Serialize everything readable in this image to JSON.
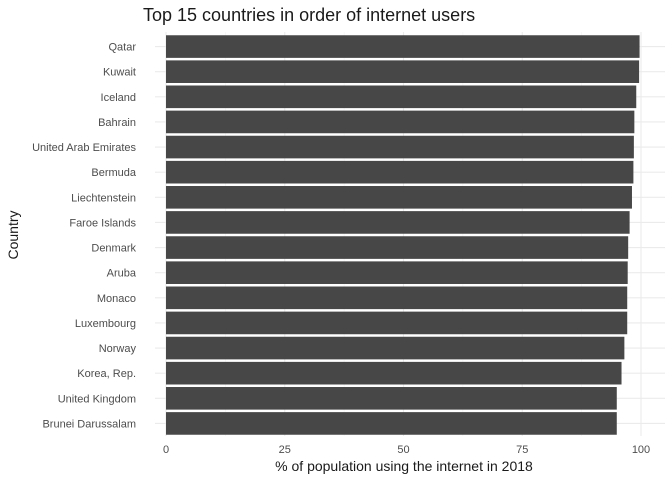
{
  "chart_data": {
    "type": "bar",
    "orientation": "horizontal",
    "title": "Top 15 countries in order of internet users",
    "xlabel": "% of population using the internet in 2018",
    "ylabel": "Country",
    "xlim": [
      0,
      100
    ],
    "x_ticks": [
      0,
      25,
      50,
      75,
      100
    ],
    "grid": true,
    "bar_color": "#474747",
    "categories": [
      "Qatar",
      "Kuwait",
      "Iceland",
      "Bahrain",
      "United Arab Emirates",
      "Bermuda",
      "Liechtenstein",
      "Faroe Islands",
      "Denmark",
      "Aruba",
      "Monaco",
      "Luxembourg",
      "Norway",
      "Korea, Rep.",
      "United Kingdom",
      "Brunei Darussalam"
    ],
    "values": [
      99.7,
      99.6,
      99.0,
      98.6,
      98.5,
      98.4,
      98.1,
      97.6,
      97.3,
      97.2,
      97.1,
      97.1,
      96.5,
      95.9,
      94.9,
      94.9
    ]
  }
}
